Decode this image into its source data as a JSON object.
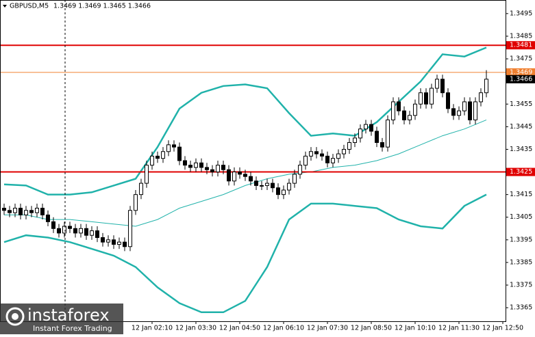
{
  "chart_data": {
    "type": "candlestick",
    "symbol": "GBPUSD,M5",
    "quote": "1.3469 1.3469 1.3465 1.3466",
    "watermark": {
      "brand": "instaforex",
      "slogan": "Instant Forex Trading"
    },
    "ylim": [
      1.3359,
      1.3501
    ],
    "yticks": [
      1.3365,
      1.3375,
      1.3385,
      1.3395,
      1.3405,
      1.3415,
      1.3425,
      1.3435,
      1.3445,
      1.3455,
      1.3465,
      1.3475,
      1.3485,
      1.3495
    ],
    "xlim": [
      -0.75,
      91.5
    ],
    "xticks": [
      {
        "value": 27,
        "label": "12 Jan 02:10"
      },
      {
        "value": 35,
        "label": "12 Jan 03:30"
      },
      {
        "value": 43,
        "label": "12 Jan 04:50"
      },
      {
        "value": 51,
        "label": "12 Jan 06:10"
      },
      {
        "value": 59,
        "label": "12 Jan 07:30"
      },
      {
        "value": 67,
        "label": "12 Jan 08:50"
      },
      {
        "value": 75,
        "label": "12 Jan 10:10"
      },
      {
        "value": 83,
        "label": "12 Jan 11:30"
      },
      {
        "value": 91,
        "label": "12 Jan 12:50"
      }
    ],
    "up_color": "#ffffff",
    "down_color": "#000000",
    "candles": [
      [
        1.3409,
        1.3411,
        1.3406,
        1.3408
      ],
      [
        1.3408,
        1.341,
        1.3405,
        1.3407
      ],
      [
        1.3407,
        1.3411,
        1.3405,
        1.3409
      ],
      [
        1.3409,
        1.3411,
        1.3404,
        1.3406
      ],
      [
        1.3406,
        1.341,
        1.3404,
        1.3408
      ],
      [
        1.3408,
        1.341,
        1.3405,
        1.3407
      ],
      [
        1.3407,
        1.3411,
        1.3405,
        1.3409
      ],
      [
        1.3409,
        1.3411,
        1.3404,
        1.3406
      ],
      [
        1.3406,
        1.3408,
        1.3401,
        1.3403
      ],
      [
        1.3403,
        1.3405,
        1.3398,
        1.34
      ],
      [
        1.34,
        1.3402,
        1.3396,
        1.3398
      ],
      [
        1.3398,
        1.3403,
        1.3396,
        1.3401
      ],
      [
        1.3401,
        1.3403,
        1.3398,
        1.34
      ],
      [
        1.34,
        1.3402,
        1.3396,
        1.3398
      ],
      [
        1.3398,
        1.3402,
        1.3396,
        1.34
      ],
      [
        1.34,
        1.3402,
        1.3395,
        1.3397
      ],
      [
        1.3397,
        1.3401,
        1.3395,
        1.3399
      ],
      [
        1.3399,
        1.3401,
        1.3394,
        1.3396
      ],
      [
        1.3396,
        1.3398,
        1.3392,
        1.3394
      ],
      [
        1.3394,
        1.3397,
        1.3392,
        1.3395
      ],
      [
        1.3395,
        1.3397,
        1.3391,
        1.3393
      ],
      [
        1.3393,
        1.3396,
        1.3391,
        1.3394
      ],
      [
        1.3394,
        1.3396,
        1.339,
        1.3392
      ],
      [
        1.3392,
        1.341,
        1.339,
        1.3408
      ],
      [
        1.3408,
        1.3417,
        1.3406,
        1.3415
      ],
      [
        1.3415,
        1.3422,
        1.3413,
        1.342
      ],
      [
        1.342,
        1.343,
        1.3418,
        1.3428
      ],
      [
        1.3428,
        1.3434,
        1.3426,
        1.3432
      ],
      [
        1.3432,
        1.3434,
        1.3429,
        1.3431
      ],
      [
        1.3431,
        1.3436,
        1.3429,
        1.3434
      ],
      [
        1.3434,
        1.3439,
        1.3432,
        1.3437
      ],
      [
        1.3437,
        1.3439,
        1.3434,
        1.3436
      ],
      [
        1.3436,
        1.3438,
        1.3428,
        1.343
      ],
      [
        1.343,
        1.3432,
        1.3426,
        1.3428
      ],
      [
        1.3428,
        1.343,
        1.3425,
        1.3427
      ],
      [
        1.3427,
        1.3431,
        1.3425,
        1.3429
      ],
      [
        1.3429,
        1.3431,
        1.3425,
        1.3427
      ],
      [
        1.3427,
        1.3429,
        1.3424,
        1.3426
      ],
      [
        1.3426,
        1.3428,
        1.3423,
        1.3425
      ],
      [
        1.3425,
        1.343,
        1.3423,
        1.3428
      ],
      [
        1.3428,
        1.343,
        1.3424,
        1.3426
      ],
      [
        1.3426,
        1.3428,
        1.3419,
        1.3421
      ],
      [
        1.3421,
        1.3427,
        1.3419,
        1.3425
      ],
      [
        1.3425,
        1.3427,
        1.3422,
        1.3424
      ],
      [
        1.3424,
        1.3426,
        1.3421,
        1.3423
      ],
      [
        1.3423,
        1.3425,
        1.3419,
        1.3421
      ],
      [
        1.3421,
        1.3423,
        1.3417,
        1.3419
      ],
      [
        1.3419,
        1.3421,
        1.3417,
        1.3419
      ],
      [
        1.3419,
        1.3422,
        1.3417,
        1.342
      ],
      [
        1.342,
        1.3422,
        1.3416,
        1.3418
      ],
      [
        1.3418,
        1.342,
        1.3413,
        1.3415
      ],
      [
        1.3415,
        1.3419,
        1.3413,
        1.3417
      ],
      [
        1.3417,
        1.3422,
        1.3415,
        1.342
      ],
      [
        1.342,
        1.3426,
        1.3418,
        1.3424
      ],
      [
        1.3424,
        1.343,
        1.3422,
        1.3428
      ],
      [
        1.3428,
        1.3434,
        1.3426,
        1.3432
      ],
      [
        1.3432,
        1.3436,
        1.343,
        1.3434
      ],
      [
        1.3434,
        1.3436,
        1.3431,
        1.3433
      ],
      [
        1.3433,
        1.3435,
        1.343,
        1.3432
      ],
      [
        1.3432,
        1.3434,
        1.3427,
        1.3429
      ],
      [
        1.3429,
        1.3433,
        1.3427,
        1.3431
      ],
      [
        1.3431,
        1.3435,
        1.3429,
        1.3433
      ],
      [
        1.3433,
        1.3437,
        1.3431,
        1.3435
      ],
      [
        1.3435,
        1.344,
        1.3433,
        1.3438
      ],
      [
        1.3438,
        1.3442,
        1.3436,
        1.344
      ],
      [
        1.344,
        1.3446,
        1.3438,
        1.3444
      ],
      [
        1.3444,
        1.3448,
        1.3442,
        1.3446
      ],
      [
        1.3446,
        1.3448,
        1.3441,
        1.3443
      ],
      [
        1.3443,
        1.3445,
        1.3436,
        1.3438
      ],
      [
        1.3438,
        1.344,
        1.3434,
        1.3436
      ],
      [
        1.3436,
        1.345,
        1.3434,
        1.3448
      ],
      [
        1.3448,
        1.3458,
        1.3446,
        1.3456
      ],
      [
        1.3456,
        1.3458,
        1.345,
        1.3452
      ],
      [
        1.3452,
        1.3454,
        1.3446,
        1.3448
      ],
      [
        1.3448,
        1.3452,
        1.3446,
        1.345
      ],
      [
        1.345,
        1.3457,
        1.3448,
        1.3455
      ],
      [
        1.3455,
        1.3462,
        1.3453,
        1.346
      ],
      [
        1.346,
        1.3462,
        1.3453,
        1.3455
      ],
      [
        1.3455,
        1.3464,
        1.3453,
        1.3462
      ],
      [
        1.3462,
        1.3468,
        1.346,
        1.3466
      ],
      [
        1.3466,
        1.3468,
        1.3458,
        1.346
      ],
      [
        1.346,
        1.3462,
        1.3451,
        1.3453
      ],
      [
        1.3453,
        1.3455,
        1.3448,
        1.345
      ],
      [
        1.345,
        1.3454,
        1.3448,
        1.3452
      ],
      [
        1.3452,
        1.3458,
        1.345,
        1.3456
      ],
      [
        1.3456,
        1.3458,
        1.3446,
        1.3448
      ],
      [
        1.3448,
        1.3458,
        1.3446,
        1.3456
      ],
      [
        1.3456,
        1.3462,
        1.3454,
        1.346
      ],
      [
        1.346,
        1.347,
        1.3458,
        1.3466
      ]
    ],
    "series": [
      {
        "color": "#20b2aa",
        "width": 2.5,
        "x": [
          0,
          4,
          8,
          12,
          16,
          20,
          24,
          28,
          32,
          36,
          40,
          44,
          48,
          52,
          56,
          60,
          64,
          68,
          72,
          76,
          80,
          84,
          88
        ],
        "values": [
          1.34195,
          1.3419,
          1.3415,
          1.3415,
          1.3416,
          1.3419,
          1.3422,
          1.3436,
          1.3453,
          1.346,
          1.3463,
          1.34637,
          1.3462,
          1.3451,
          1.3441,
          1.3442,
          1.3441,
          1.3447,
          1.3456,
          1.3465,
          1.3477,
          1.3476,
          1.348
        ]
      },
      {
        "color": "#20b2aa",
        "width": 1,
        "x": [
          0,
          4,
          8,
          12,
          16,
          20,
          24,
          28,
          32,
          36,
          40,
          44,
          48,
          52,
          56,
          60,
          64,
          68,
          72,
          76,
          80,
          84,
          88
        ],
        "values": [
          1.3406,
          1.3406,
          1.3404,
          1.3404,
          1.3403,
          1.3402,
          1.3401,
          1.3404,
          1.3409,
          1.3412,
          1.3415,
          1.3419,
          1.3422,
          1.3424,
          1.3425,
          1.3427,
          1.3428,
          1.343,
          1.3433,
          1.3437,
          1.3441,
          1.3444,
          1.3448
        ]
      },
      {
        "color": "#20b2aa",
        "width": 2.5,
        "x": [
          0,
          4,
          8,
          12,
          16,
          20,
          24,
          28,
          32,
          36,
          40,
          44,
          48,
          52,
          56,
          60,
          64,
          68,
          72,
          76,
          80,
          84,
          88
        ],
        "values": [
          1.3394,
          1.3397,
          1.3396,
          1.3394,
          1.3391,
          1.3388,
          1.3383,
          1.3374,
          1.3367,
          1.3363,
          1.3363,
          1.3368,
          1.3383,
          1.3404,
          1.3411,
          1.3411,
          1.341,
          1.3409,
          1.3404,
          1.3401,
          1.34,
          1.341,
          1.3415
        ]
      }
    ],
    "levels": [
      {
        "value": 1.3481,
        "color": "#e00000",
        "line": true
      },
      {
        "value": 1.3469,
        "color": "#f08030",
        "line": true
      },
      {
        "value": 1.3466,
        "color": "#000000",
        "line": false
      },
      {
        "value": 1.3425,
        "color": "#e00000",
        "line": true
      }
    ]
  }
}
